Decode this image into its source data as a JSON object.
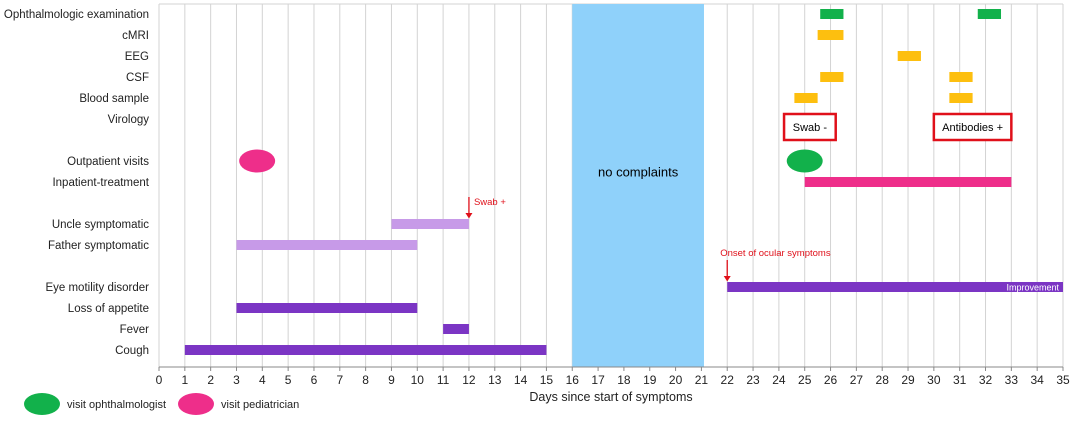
{
  "chart_data": {
    "type": "timeline",
    "xlabel": "Days since start of symptoms",
    "xlim": [
      0,
      35
    ],
    "xticks": [
      0,
      1,
      2,
      3,
      4,
      5,
      6,
      7,
      8,
      9,
      10,
      11,
      12,
      13,
      14,
      15,
      16,
      17,
      18,
      19,
      20,
      21,
      22,
      23,
      24,
      25,
      26,
      27,
      28,
      29,
      30,
      31,
      32,
      33,
      34,
      35
    ],
    "grid": "vertical",
    "colors": {
      "green": "#12b14b",
      "yellow": "#fdbf0f",
      "pink": "#ee2e8a",
      "purple_dark": "#7b35c4",
      "purple_light": "#c79ae8",
      "shade": "#8fd1fa",
      "red": "#e0101a"
    },
    "rows": [
      {
        "label": "Ophthalmologic examination"
      },
      {
        "label": "cMRI"
      },
      {
        "label": "EEG"
      },
      {
        "label": "CSF"
      },
      {
        "label": "Blood sample"
      },
      {
        "label": "Virology"
      },
      {
        "label": ""
      },
      {
        "label": "Outpatient visits"
      },
      {
        "label": "Inpatient-treatment"
      },
      {
        "label": ""
      },
      {
        "label": "Uncle symptomatic"
      },
      {
        "label": "Father symptomatic"
      },
      {
        "label": ""
      },
      {
        "label": "Eye motility disorder"
      },
      {
        "label": "Loss of appetite"
      },
      {
        "label": "Fever"
      },
      {
        "label": "Cough"
      }
    ],
    "bars": [
      {
        "row": 0,
        "start": 25.6,
        "end": 26.5,
        "color": "green"
      },
      {
        "row": 0,
        "start": 31.7,
        "end": 32.6,
        "color": "green"
      },
      {
        "row": 1,
        "start": 25.5,
        "end": 26.5,
        "color": "yellow"
      },
      {
        "row": 2,
        "start": 28.6,
        "end": 29.5,
        "color": "yellow"
      },
      {
        "row": 3,
        "start": 25.6,
        "end": 26.5,
        "color": "yellow"
      },
      {
        "row": 3,
        "start": 30.6,
        "end": 31.5,
        "color": "yellow"
      },
      {
        "row": 4,
        "start": 24.6,
        "end": 25.5,
        "color": "yellow"
      },
      {
        "row": 4,
        "start": 30.6,
        "end": 31.5,
        "color": "yellow"
      },
      {
        "row": 8,
        "start": 25,
        "end": 33,
        "color": "pink"
      },
      {
        "row": 10,
        "start": 9,
        "end": 12,
        "color": "purple_light"
      },
      {
        "row": 11,
        "start": 3,
        "end": 10,
        "color": "purple_light"
      },
      {
        "row": 13,
        "start": 22,
        "end": 35,
        "color": "purple_dark"
      },
      {
        "row": 14,
        "start": 3,
        "end": 10,
        "color": "purple_dark"
      },
      {
        "row": 15,
        "start": 11,
        "end": 12,
        "color": "purple_dark"
      },
      {
        "row": 16,
        "start": 1,
        "end": 15,
        "color": "purple_dark"
      }
    ],
    "visits": [
      {
        "row": 7,
        "x": 3.8,
        "type": "pediatrician"
      },
      {
        "row": 7,
        "x": 25.0,
        "type": "ophthalmologist"
      }
    ],
    "virology_boxes": [
      {
        "text": "Swab -",
        "start": 24.2,
        "end": 26.2
      },
      {
        "text": "Antibodies +",
        "start": 30.0,
        "end": 33.0
      }
    ],
    "shaded_period": {
      "start": 16,
      "end": 21.1,
      "label": "no complaints"
    },
    "annotations": [
      {
        "text": "Swab +",
        "x": 12,
        "row": 10
      },
      {
        "text": "Onset of ocular symptoms",
        "x": 22,
        "row": 13
      }
    ],
    "bar_labels": [
      {
        "text": "Improvement",
        "row": 13,
        "x": 35
      }
    ],
    "legend": [
      {
        "label": "visit ophthalmologist",
        "color": "green"
      },
      {
        "label": "visit pediatrician",
        "color": "pink"
      }
    ]
  }
}
